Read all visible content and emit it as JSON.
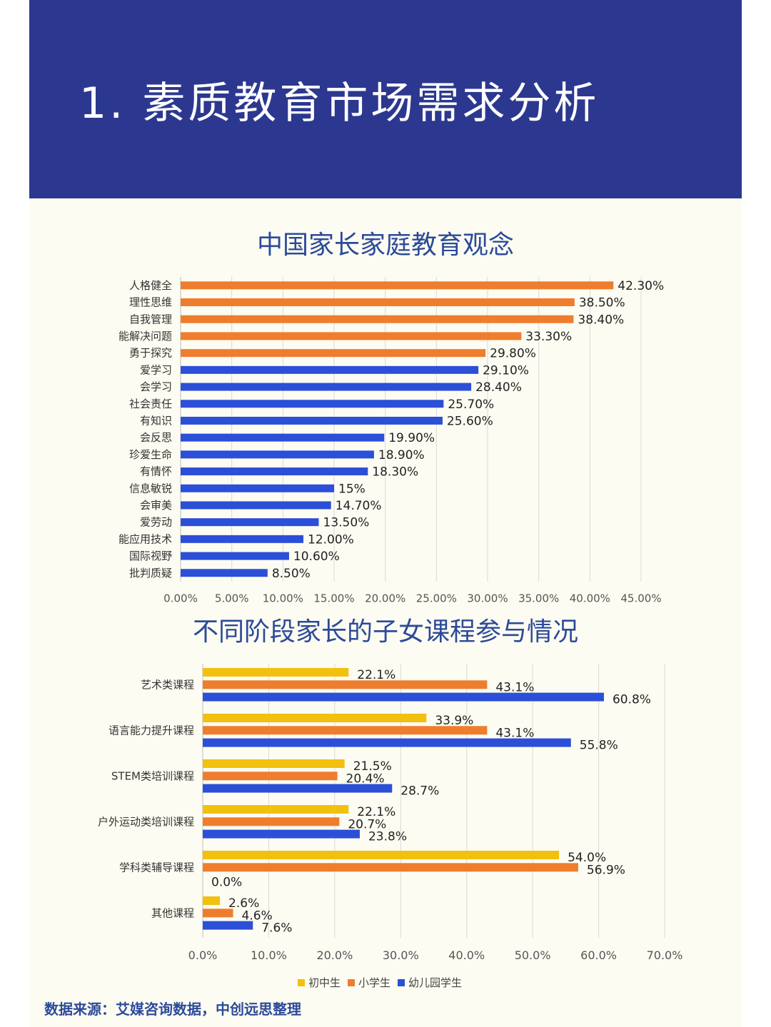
{
  "header": {
    "title": "1.  素质教育市场需求分析"
  },
  "colors": {
    "header_bg": "#2c388f",
    "orange": "#ef7d2e",
    "blue": "#2c4fd8",
    "yellow": "#f2c00e",
    "title_text": "#2c4a9a"
  },
  "chart_data": [
    {
      "type": "bar",
      "orientation": "horizontal",
      "title": "中国家长家庭教育观念",
      "categories": [
        "人格健全",
        "理性思维",
        "自我管理",
        "能解决问题",
        "勇于探究",
        "爱学习",
        "会学习",
        "社会责任",
        "有知识",
        "会反思",
        "珍爱生命",
        "有情怀",
        "信息敏锐",
        "会审美",
        "爱劳动",
        "能应用技术",
        "国际视野",
        "批判质疑"
      ],
      "values": [
        42.3,
        38.5,
        38.4,
        33.3,
        29.8,
        29.1,
        28.4,
        25.7,
        25.6,
        19.9,
        18.9,
        18.3,
        15,
        14.7,
        13.5,
        12.0,
        10.6,
        8.5
      ],
      "value_labels": [
        "42.30%",
        "38.50%",
        "38.40%",
        "33.30%",
        "29.80%",
        "29.10%",
        "28.40%",
        "25.70%",
        "25.60%",
        "19.90%",
        "18.90%",
        "18.30%",
        "15%",
        "14.70%",
        "13.50%",
        "12.00%",
        "10.60%",
        "8.50%"
      ],
      "bar_colors": [
        "orange",
        "orange",
        "orange",
        "orange",
        "orange",
        "blue",
        "blue",
        "blue",
        "blue",
        "blue",
        "blue",
        "blue",
        "blue",
        "blue",
        "blue",
        "blue",
        "blue",
        "blue"
      ],
      "xlim": [
        0,
        45
      ],
      "xticks": [
        "0.00%",
        "5.00%",
        "10.00%",
        "15.00%",
        "20.00%",
        "25.00%",
        "30.00%",
        "35.00%",
        "40.00%",
        "45.00%"
      ],
      "grid": true
    },
    {
      "type": "bar",
      "orientation": "horizontal",
      "title": "不同阶段家长的子女课程参与情况",
      "categories": [
        "艺术类课程",
        "语言能力提升课程",
        "STEM类培训课程",
        "户外运动类培训课程",
        "学科类辅导课程",
        "其他课程"
      ],
      "series": [
        {
          "name": "初中生",
          "color": "yellow",
          "values": [
            22.1,
            33.9,
            21.5,
            22.1,
            54.0,
            2.6
          ],
          "labels": [
            "22.1%",
            "33.9%",
            "21.5%",
            "22.1%",
            "54.0%",
            "2.6%"
          ]
        },
        {
          "name": "小学生",
          "color": "orange",
          "values": [
            43.1,
            43.1,
            20.4,
            20.7,
            56.9,
            4.6
          ],
          "labels": [
            "43.1%",
            "43.1%",
            "20.4%",
            "20.7%",
            "56.9%",
            "4.6%"
          ]
        },
        {
          "name": "幼儿园学生",
          "color": "blue",
          "values": [
            60.8,
            55.8,
            28.7,
            23.8,
            0.0,
            7.6
          ],
          "labels": [
            "60.8%",
            "55.8%",
            "28.7%",
            "23.8%",
            "0.0%",
            "7.6%"
          ]
        }
      ],
      "xlim": [
        0,
        70
      ],
      "xticks": [
        "0.0%",
        "10.0%",
        "20.0%",
        "30.0%",
        "40.0%",
        "50.0%",
        "60.0%",
        "70.0%"
      ],
      "legend_position": "bottom",
      "grid": true
    }
  ],
  "footer": {
    "source": "数据来源：艾媒咨询数据，中创远思整理"
  }
}
